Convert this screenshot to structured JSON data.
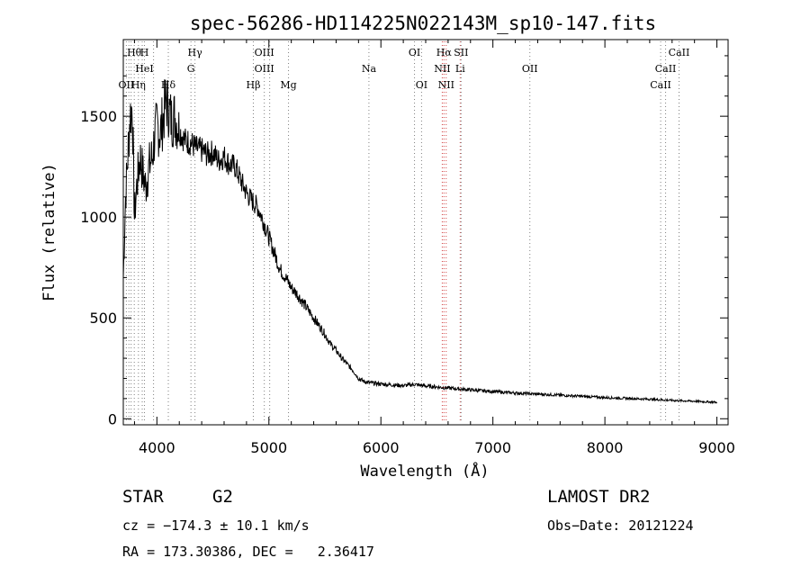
{
  "chart_data": {
    "type": "line",
    "title": "spec-56286-HD114225N022143M_sp10-147.fits",
    "xlabel": "Wavelength (Å)",
    "ylabel": "Flux (relative)",
    "xlim": [
      3700,
      9100
    ],
    "ylim": [
      -30,
      1880
    ],
    "xticks": [
      4000,
      5000,
      6000,
      7000,
      8000,
      9000
    ],
    "yticks": [
      0,
      500,
      1000,
      1500
    ],
    "grid": false,
    "series": [
      {
        "x": [
          3700,
          3720,
          3740,
          3760,
          3780,
          3800,
          3820,
          3850,
          3880,
          3900,
          3930,
          3960,
          3980,
          4000,
          4030,
          4060,
          4080,
          4100,
          4130,
          4160,
          4200,
          4250,
          4300,
          4350,
          4400,
          4450,
          4500,
          4550,
          4600,
          4650,
          4700,
          4750,
          4800,
          4850,
          4900,
          4950,
          5000,
          5050,
          5100,
          5150,
          5200,
          5250,
          5300,
          5350,
          5400,
          5450,
          5500,
          5550,
          5600,
          5650,
          5700,
          5750,
          5800,
          5850,
          5900,
          5950,
          6000,
          6100,
          6200,
          6300,
          6400,
          6500,
          6600,
          6700,
          6800,
          6900,
          7000,
          7100,
          7200,
          7300,
          7400,
          7500,
          7600,
          7700,
          7800,
          7900,
          8000,
          8100,
          8200,
          8300,
          8400,
          8500,
          8600,
          8700,
          8800,
          8900,
          9000
        ],
        "y": [
          700,
          1100,
          1300,
          1500,
          1550,
          1000,
          1150,
          1300,
          1200,
          1150,
          1250,
          1300,
          1400,
          1450,
          1420,
          1500,
          1580,
          1550,
          1480,
          1500,
          1430,
          1380,
          1370,
          1340,
          1330,
          1310,
          1320,
          1280,
          1300,
          1260,
          1250,
          1180,
          1120,
          1080,
          1050,
          980,
          900,
          820,
          740,
          700,
          650,
          620,
          580,
          540,
          500,
          460,
          420,
          370,
          340,
          300,
          270,
          240,
          200,
          185,
          178,
          175,
          172,
          168,
          164,
          170,
          162,
          158,
          152,
          148,
          143,
          139,
          135,
          131,
          128,
          125,
          122,
          120,
          117,
          114,
          111,
          108,
          105,
          103,
          101,
          99,
          97,
          94,
          91,
          89,
          87,
          84,
          82
        ]
      }
    ],
    "line_labels": [
      {
        "text": "Hθ",
        "x": 3798,
        "row": 1
      },
      {
        "text": "H",
        "x": 3889,
        "row": 1
      },
      {
        "text": "Hγ",
        "x": 4340,
        "row": 1
      },
      {
        "text": "OIII",
        "x": 4959,
        "row": 1
      },
      {
        "text": "OI",
        "x": 6300,
        "row": 1
      },
      {
        "text": "Hα",
        "x": 6563,
        "row": 1
      },
      {
        "text": "SII",
        "x": 6716,
        "row": 1
      },
      {
        "text": "CaII",
        "x": 8662,
        "row": 1
      },
      {
        "text": "HeI",
        "x": 3889,
        "row": 2
      },
      {
        "text": "G",
        "x": 4304,
        "row": 2
      },
      {
        "text": "OIII",
        "x": 4959,
        "row": 2
      },
      {
        "text": "Na",
        "x": 5893,
        "row": 2
      },
      {
        "text": "NII",
        "x": 6548,
        "row": 2
      },
      {
        "text": "Li",
        "x": 6708,
        "row": 2
      },
      {
        "text": "OII",
        "x": 7330,
        "row": 2
      },
      {
        "text": "CaII",
        "x": 8542,
        "row": 2
      },
      {
        "text": "OII",
        "x": 3727,
        "row": 3
      },
      {
        "text": "Hη",
        "x": 3835,
        "row": 3
      },
      {
        "text": "Hδ",
        "x": 4102,
        "row": 3
      },
      {
        "text": "Hβ",
        "x": 4861,
        "row": 3
      },
      {
        "text": "Mg",
        "x": 5175,
        "row": 3
      },
      {
        "text": "OI",
        "x": 6363,
        "row": 3
      },
      {
        "text": "NII",
        "x": 6583,
        "row": 3
      },
      {
        "text": "CaII",
        "x": 8498,
        "row": 3
      }
    ],
    "line_markers": [
      {
        "x": 3727,
        "color": "#808080"
      },
      {
        "x": 3750,
        "color": "#808080"
      },
      {
        "x": 3770,
        "color": "#808080"
      },
      {
        "x": 3798,
        "color": "#808080"
      },
      {
        "x": 3835,
        "color": "#808080"
      },
      {
        "x": 3869,
        "color": "#808080"
      },
      {
        "x": 3889,
        "color": "#808080"
      },
      {
        "x": 3970,
        "color": "#808080"
      },
      {
        "x": 4102,
        "color": "#808080"
      },
      {
        "x": 4304,
        "color": "#808080"
      },
      {
        "x": 4340,
        "color": "#808080"
      },
      {
        "x": 4861,
        "color": "#808080"
      },
      {
        "x": 4959,
        "color": "#808080"
      },
      {
        "x": 5007,
        "color": "#808080"
      },
      {
        "x": 5175,
        "color": "#808080"
      },
      {
        "x": 5893,
        "color": "#808080"
      },
      {
        "x": 6300,
        "color": "#808080"
      },
      {
        "x": 6363,
        "color": "#808080"
      },
      {
        "x": 6548,
        "color": "#d04040"
      },
      {
        "x": 6563,
        "color": "#d04040"
      },
      {
        "x": 6583,
        "color": "#d04040"
      },
      {
        "x": 6708,
        "color": "#d04040"
      },
      {
        "x": 6716,
        "color": "#808080"
      },
      {
        "x": 7330,
        "color": "#808080"
      },
      {
        "x": 8498,
        "color": "#808080"
      },
      {
        "x": 8542,
        "color": "#808080"
      },
      {
        "x": 8662,
        "color": "#808080"
      }
    ]
  },
  "info": {
    "object_class": "STAR",
    "subclass": "G2",
    "survey": "LAMOST DR2",
    "cz": "cz = −174.3 ± 10.1 km/s",
    "obs_date": "Obs−Date: 20121224",
    "coords": "RA = 173.30386, DEC =   2.36417"
  }
}
